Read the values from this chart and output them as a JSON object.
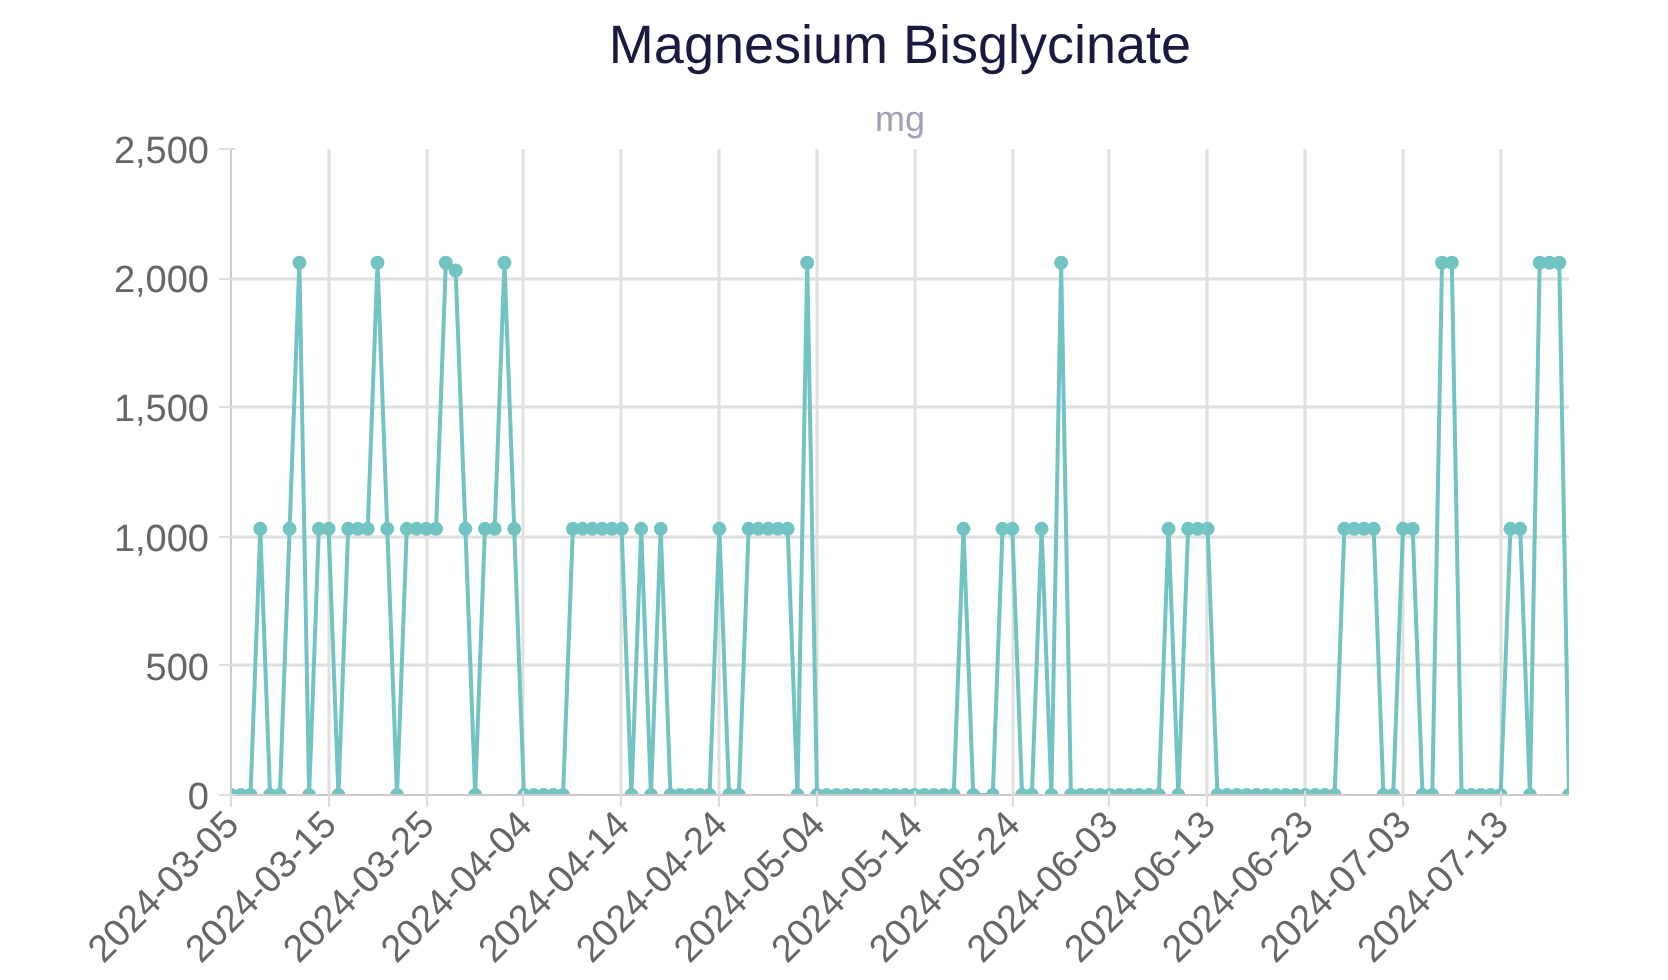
{
  "chart_data": {
    "type": "line",
    "title": "Magnesium Bisglycinate",
    "subtitle": "mg",
    "x": [
      "2024-03-05",
      "2024-03-06",
      "2024-03-07",
      "2024-03-08",
      "2024-03-09",
      "2024-03-10",
      "2024-03-11",
      "2024-03-12",
      "2024-03-13",
      "2024-03-14",
      "2024-03-15",
      "2024-03-16",
      "2024-03-17",
      "2024-03-18",
      "2024-03-19",
      "2024-03-20",
      "2024-03-21",
      "2024-03-22",
      "2024-03-23",
      "2024-03-24",
      "2024-03-25",
      "2024-03-26",
      "2024-03-27",
      "2024-03-28",
      "2024-03-29",
      "2024-03-30",
      "2024-03-31",
      "2024-04-01",
      "2024-04-02",
      "2024-04-03",
      "2024-04-04",
      "2024-04-05",
      "2024-04-06",
      "2024-04-07",
      "2024-04-08",
      "2024-04-09",
      "2024-04-10",
      "2024-04-11",
      "2024-04-12",
      "2024-04-13",
      "2024-04-14",
      "2024-04-15",
      "2024-04-16",
      "2024-04-17",
      "2024-04-18",
      "2024-04-19",
      "2024-04-20",
      "2024-04-21",
      "2024-04-22",
      "2024-04-23",
      "2024-04-24",
      "2024-04-25",
      "2024-04-26",
      "2024-04-27",
      "2024-04-28",
      "2024-04-29",
      "2024-04-30",
      "2024-05-01",
      "2024-05-02",
      "2024-05-03",
      "2024-05-04",
      "2024-05-05",
      "2024-05-06",
      "2024-05-07",
      "2024-05-08",
      "2024-05-09",
      "2024-05-10",
      "2024-05-11",
      "2024-05-12",
      "2024-05-13",
      "2024-05-14",
      "2024-05-15",
      "2024-05-16",
      "2024-05-17",
      "2024-05-18",
      "2024-05-19",
      "2024-05-20",
      "2024-05-22",
      "2024-05-23",
      "2024-05-24",
      "2024-05-25",
      "2024-05-26",
      "2024-05-27",
      "2024-05-28",
      "2024-05-29",
      "2024-05-30",
      "2024-05-31",
      "2024-06-01",
      "2024-06-02",
      "2024-06-03",
      "2024-06-04",
      "2024-06-05",
      "2024-06-06",
      "2024-06-07",
      "2024-06-08",
      "2024-06-09",
      "2024-06-10",
      "2024-06-11",
      "2024-06-12",
      "2024-06-13",
      "2024-06-14",
      "2024-06-15",
      "2024-06-16",
      "2024-06-17",
      "2024-06-18",
      "2024-06-19",
      "2024-06-20",
      "2024-06-21",
      "2024-06-22",
      "2024-06-23",
      "2024-06-24",
      "2024-06-25",
      "2024-06-26",
      "2024-06-27",
      "2024-06-28",
      "2024-06-29",
      "2024-06-30",
      "2024-07-01",
      "2024-07-02",
      "2024-07-03",
      "2024-07-04",
      "2024-07-05",
      "2024-07-06",
      "2024-07-07",
      "2024-07-08",
      "2024-07-09",
      "2024-07-10",
      "2024-07-11",
      "2024-07-12",
      "2024-07-13",
      "2024-07-14",
      "2024-07-15",
      "2024-07-16",
      "2024-07-17",
      "2024-07-18",
      "2024-07-19",
      "2024-07-20"
    ],
    "series": [
      {
        "color": "#72c4c2",
        "values": [
          0,
          0,
          0,
          1030,
          0,
          0,
          1030,
          2060,
          0,
          1030,
          1030,
          0,
          1030,
          1030,
          1030,
          2060,
          1030,
          0,
          1030,
          1030,
          1030,
          1030,
          2060,
          2030,
          1030,
          0,
          1030,
          1030,
          2060,
          1030,
          0,
          0,
          0,
          0,
          0,
          1030,
          1030,
          1030,
          1030,
          1030,
          1030,
          0,
          1030,
          0,
          1030,
          0,
          0,
          0,
          0,
          0,
          1030,
          0,
          0,
          1030,
          1030,
          1030,
          1030,
          1030,
          0,
          2060,
          0,
          0,
          0,
          0,
          0,
          0,
          0,
          0,
          0,
          0,
          0,
          0,
          0,
          0,
          0,
          1030,
          0,
          0,
          1030,
          1030,
          0,
          0,
          1030,
          0,
          2060,
          0,
          0,
          0,
          0,
          0,
          0,
          0,
          0,
          0,
          0,
          1030,
          0,
          1030,
          1030,
          1030,
          0,
          0,
          0,
          0,
          0,
          0,
          0,
          0,
          0,
          0,
          0,
          0,
          0,
          1030,
          1030,
          1030,
          1030,
          0,
          0,
          1030,
          1030,
          0,
          0,
          2060,
          2060,
          0,
          0,
          0,
          0,
          0,
          1030,
          1030,
          0,
          2060,
          2060,
          2060,
          0
        ]
      }
    ],
    "xlim": [
      "2024-03-05",
      "2024-07-20"
    ],
    "xticks": [
      "2024-03-05",
      "2024-03-15",
      "2024-03-25",
      "2024-04-04",
      "2024-04-14",
      "2024-04-24",
      "2024-05-04",
      "2024-05-14",
      "2024-05-24",
      "2024-06-03",
      "2024-06-13",
      "2024-06-23",
      "2024-07-03",
      "2024-07-13"
    ],
    "ylim": [
      0,
      2500
    ],
    "yticks": [
      0,
      {
        "value": 500,
        "label": "500"
      },
      {
        "value": 1000,
        "label": "1,000"
      },
      {
        "value": 1500,
        "label": "1,500"
      },
      {
        "value": 2000,
        "label": "2,000"
      },
      {
        "value": 2500,
        "label": "2,500"
      }
    ],
    "grid": true,
    "marker": "circle",
    "line_style": "solid"
  }
}
